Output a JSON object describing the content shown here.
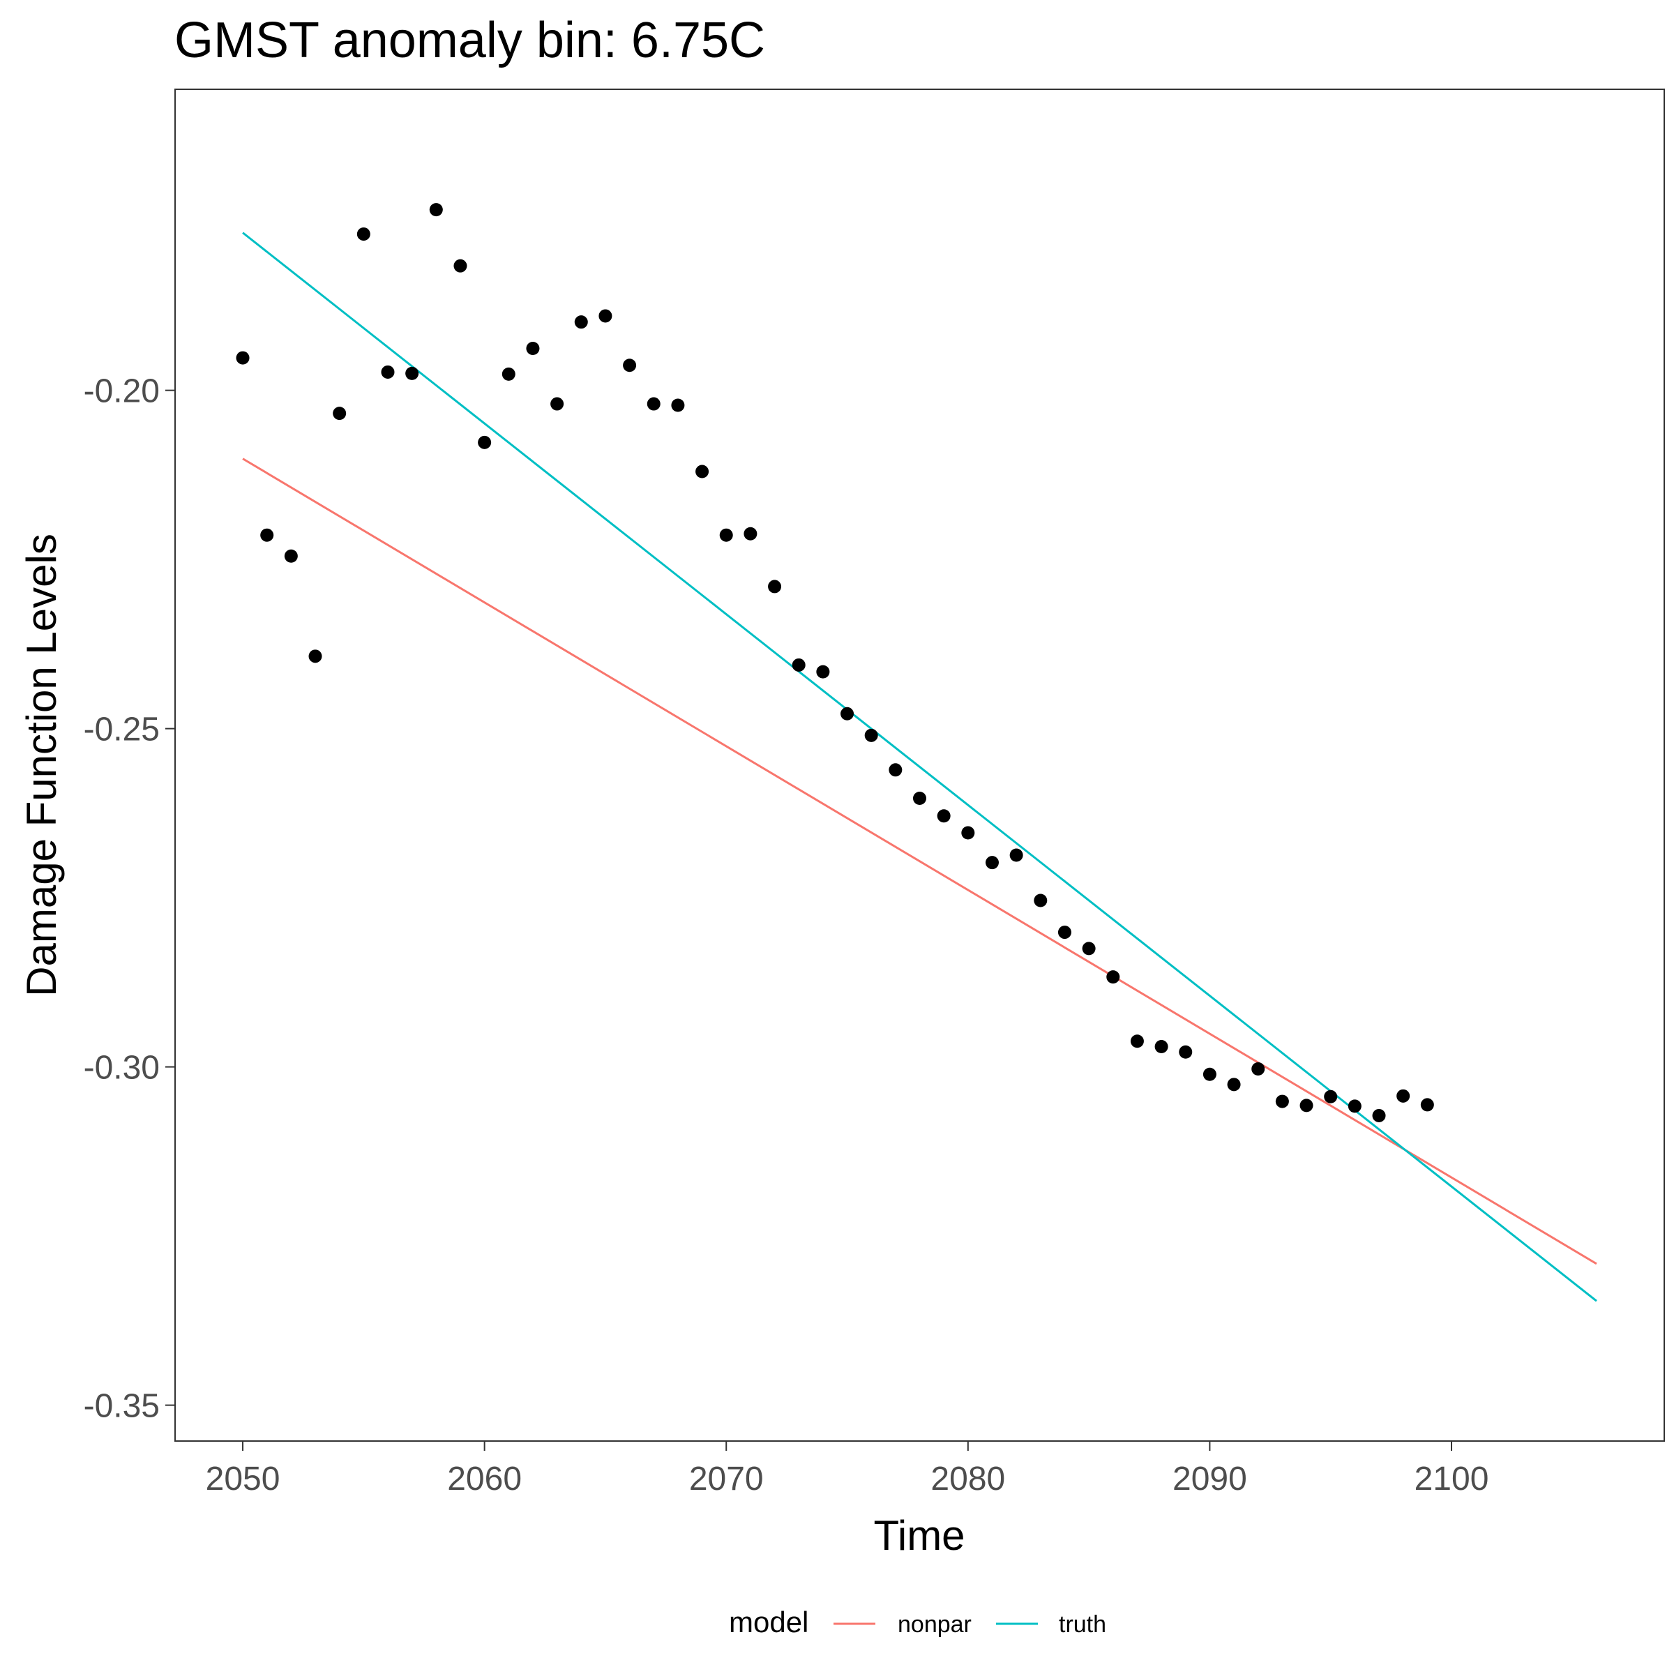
{
  "chart_data": {
    "type": "scatter",
    "title": "GMST anomaly bin: 6.75C",
    "xlabel": "Time",
    "ylabel": "Damage Function Levels",
    "xlim": [
      2047.2,
      2108.8
    ],
    "ylim": [
      -0.3553,
      -0.1555
    ],
    "x_ticks": [
      2050,
      2060,
      2070,
      2080,
      2090,
      2100
    ],
    "x_tick_labels": [
      "2050",
      "2060",
      "2070",
      "2080",
      "2090",
      "2100"
    ],
    "y_ticks": [
      -0.2,
      -0.25,
      -0.3,
      -0.35
    ],
    "y_tick_labels": [
      "-0.20",
      "-0.25",
      "-0.30",
      "-0.35"
    ],
    "grid": false,
    "legend": {
      "title": "model",
      "position": "bottom",
      "entries": [
        {
          "label": "nonpar",
          "color": "#F8766D"
        },
        {
          "label": "truth",
          "color": "#00BFC4"
        }
      ]
    },
    "points": {
      "color": "#000000",
      "x": [
        2050,
        2051,
        2052,
        2053,
        2054,
        2055,
        2056,
        2057,
        2058,
        2059,
        2060,
        2061,
        2062,
        2063,
        2064,
        2065,
        2066,
        2067,
        2068,
        2069,
        2070,
        2071,
        2072,
        2073,
        2074,
        2075,
        2076,
        2077,
        2078,
        2079,
        2080,
        2081,
        2082,
        2083,
        2084,
        2085,
        2086,
        2087,
        2088,
        2089,
        2090,
        2091,
        2092,
        2093,
        2094,
        2095,
        2096,
        2097,
        2098,
        2099
      ],
      "y": [
        -0.1952,
        -0.2214,
        -0.2245,
        -0.2393,
        -0.2034,
        -0.1769,
        -0.1973,
        -0.1975,
        -0.1733,
        -0.1816,
        -0.2077,
        -0.1976,
        -0.1938,
        -0.202,
        -0.1899,
        -0.189,
        -0.1963,
        -0.202,
        -0.2022,
        -0.212,
        -0.2214,
        -0.2212,
        -0.229,
        -0.2406,
        -0.2416,
        -0.2478,
        -0.251,
        -0.2561,
        -0.2603,
        -0.2629,
        -0.2654,
        -0.2698,
        -0.2687,
        -0.2754,
        -0.2801,
        -0.2825,
        -0.2867,
        -0.2962,
        -0.297,
        -0.2978,
        -0.3011,
        -0.3026,
        -0.3003,
        -0.3051,
        -0.3057,
        -0.3044,
        -0.3058,
        -0.3072,
        -0.3043,
        -0.3056
      ]
    },
    "series": [
      {
        "name": "nonpar",
        "color": "#F8766D",
        "x": [
          2050,
          2106
        ],
        "y": [
          -0.2101,
          -0.3291
        ]
      },
      {
        "name": "truth",
        "color": "#00BFC4",
        "x": [
          2050,
          2106
        ],
        "y": [
          -0.1767,
          -0.3346
        ]
      }
    ]
  }
}
